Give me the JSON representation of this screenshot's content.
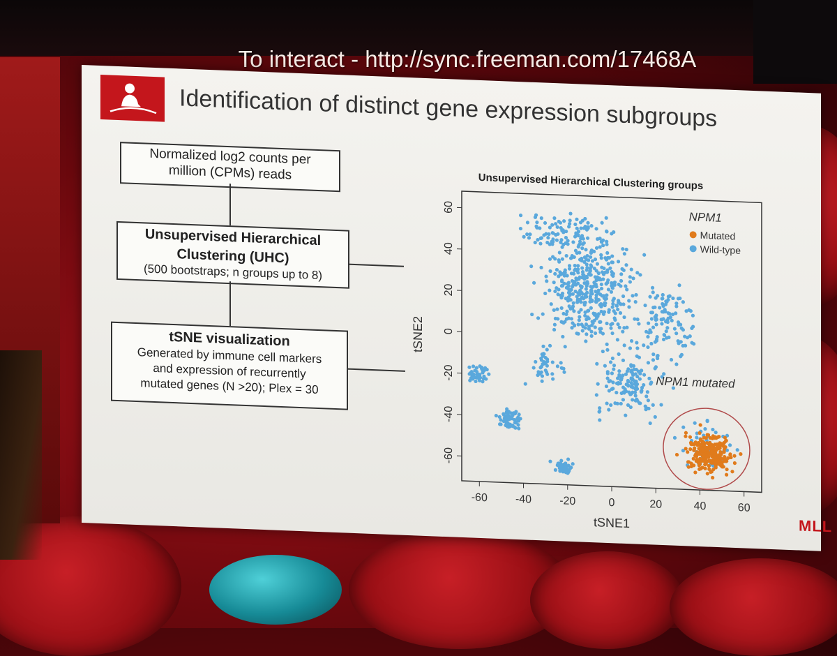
{
  "banner": "To interact - http://sync.freeman.com/17468A",
  "slide": {
    "title": "Identification of distinct gene expression subgroups",
    "logo_icon": "child-silhouette-icon",
    "footer_logo": "MLL",
    "flow": {
      "box1": {
        "line1": "Normalized log2 counts per",
        "line2": "million (CPMs) reads"
      },
      "box2": {
        "title1": "Unsupervised Hierarchical",
        "title2": "Clustering (UHC)",
        "sub": "(500 bootstraps; n groups up to 8)"
      },
      "box3": {
        "title": "tSNE visualization",
        "line1": "Generated by immune cell markers",
        "line2": "and expression of recurrently",
        "line3": "mutated genes (N >20); Plex = 30"
      }
    }
  },
  "chart_data": {
    "type": "scatter",
    "title": "Unsupervised Hierarchical Clustering groups",
    "xlabel": "tSNE1",
    "ylabel": "tSNE2",
    "xlim": [
      -68,
      68
    ],
    "ylim": [
      -72,
      68
    ],
    "xticks": [
      -60,
      -40,
      -20,
      0,
      20,
      40,
      60
    ],
    "yticks": [
      60,
      40,
      20,
      0,
      -20,
      -40,
      -60
    ],
    "legend": {
      "title": "NPM1",
      "position": "top-right",
      "entries": [
        "Mutated",
        "Wild-type"
      ]
    },
    "annotation": "NPM1 mutated",
    "colors": {
      "mutated": "#e07b1c",
      "wild_type": "#5aa8dc",
      "circle": "#b04a4a"
    },
    "series": [
      {
        "name": "Wild-type",
        "clusters": [
          {
            "cx": -10,
            "cy": 22,
            "sx": 17,
            "sy": 20,
            "n": 420
          },
          {
            "cx": 25,
            "cy": 8,
            "sx": 9,
            "sy": 16,
            "n": 110
          },
          {
            "cx": -20,
            "cy": 50,
            "sx": 18,
            "sy": 8,
            "n": 90
          },
          {
            "cx": 8,
            "cy": -22,
            "sx": 13,
            "sy": 12,
            "n": 140
          },
          {
            "cx": -30,
            "cy": -15,
            "sx": 7,
            "sy": 10,
            "n": 40
          },
          {
            "cx": -60,
            "cy": -20,
            "sx": 3.5,
            "sy": 3,
            "n": 45
          },
          {
            "cx": -46,
            "cy": -41,
            "sx": 4.5,
            "sy": 4,
            "n": 55
          },
          {
            "cx": -22,
            "cy": -64,
            "sx": 4,
            "sy": 3,
            "n": 45
          },
          {
            "cx": 42,
            "cy": -50,
            "sx": 9,
            "sy": 10,
            "n": 45
          }
        ]
      },
      {
        "name": "Mutated",
        "clusters": [
          {
            "cx": 44,
            "cy": -54,
            "sx": 9,
            "sy": 8,
            "n": 240
          }
        ]
      }
    ]
  }
}
